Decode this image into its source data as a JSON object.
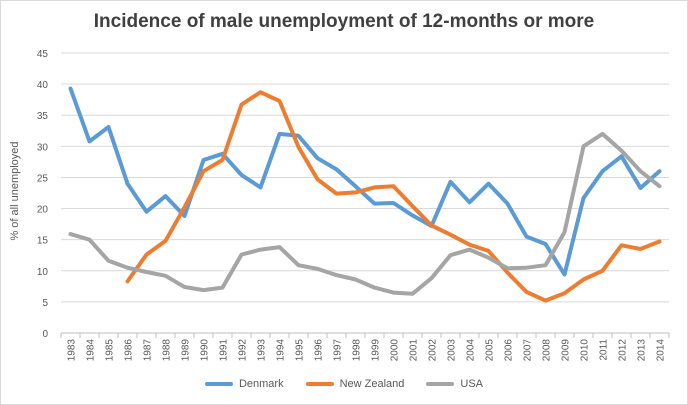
{
  "chart_data": {
    "type": "line",
    "title": "Incidence of male unemployment  of 12-months or more",
    "xlabel": "",
    "ylabel": "% of all unemployed",
    "ylim": [
      0,
      45
    ],
    "yticks": [
      "0",
      "5",
      "10",
      "15",
      "20",
      "25",
      "30",
      "35",
      "40",
      "45"
    ],
    "grid": true,
    "legend_position": "bottom",
    "categories": [
      "1983",
      "1984",
      "1985",
      "1986",
      "1987",
      "1988",
      "1989",
      "1990",
      "1991",
      "1992",
      "1993",
      "1994",
      "1995",
      "1996",
      "1997",
      "1998",
      "1999",
      "2000",
      "2001",
      "2002",
      "2003",
      "2004",
      "2005",
      "2006",
      "2007",
      "2008",
      "2009",
      "2010",
      "2011",
      "2012",
      "2013",
      "2014"
    ],
    "series": [
      {
        "name": "Denmark",
        "color": "#5b9bd5",
        "values": [
          39.3,
          30.8,
          33.1,
          24.0,
          19.5,
          22.0,
          18.8,
          27.8,
          28.8,
          25.4,
          23.4,
          32.0,
          31.7,
          28.1,
          26.3,
          23.6,
          20.8,
          20.9,
          18.9,
          17.2,
          24.3,
          21.0,
          24.0,
          20.8,
          15.5,
          14.3,
          9.4,
          21.7,
          26.0,
          28.4,
          23.3,
          26.0
        ]
      },
      {
        "name": "New Zealand",
        "color": "#ed7d31",
        "values": [
          null,
          null,
          null,
          8.3,
          12.6,
          14.8,
          20.2,
          26.0,
          27.8,
          36.7,
          38.7,
          37.3,
          29.9,
          24.7,
          22.4,
          22.6,
          23.4,
          23.6,
          20.4,
          17.3,
          15.8,
          14.2,
          13.2,
          9.7,
          6.6,
          5.2,
          6.4,
          8.6,
          10.0,
          14.1,
          13.5,
          14.7
        ]
      },
      {
        "name": "USA",
        "color": "#a5a5a5",
        "values": [
          15.9,
          15.0,
          11.6,
          10.5,
          9.8,
          9.2,
          7.4,
          6.9,
          7.3,
          12.6,
          13.4,
          13.8,
          10.9,
          10.3,
          9.3,
          8.6,
          7.3,
          6.5,
          6.3,
          8.8,
          12.5,
          13.4,
          12.1,
          10.4,
          10.5,
          10.9,
          16.2,
          30.0,
          32.0,
          29.3,
          26.0,
          23.6
        ]
      }
    ]
  }
}
